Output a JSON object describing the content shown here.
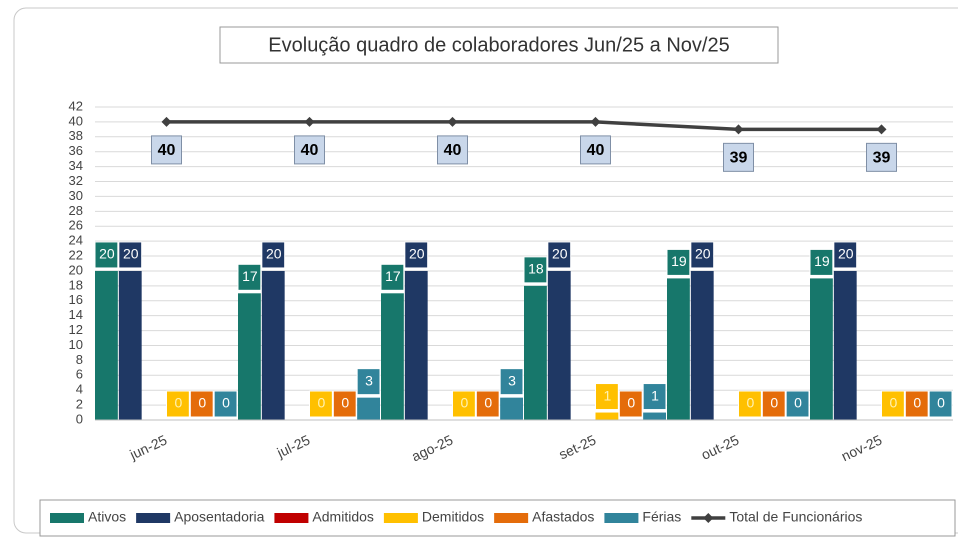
{
  "chart_data": {
    "type": "bar",
    "title": "Evolução quadro de colaboradores Jun/25 a Nov/25",
    "categories": [
      "jun-25",
      "jul-25",
      "ago-25",
      "set-25",
      "out-25",
      "nov-25"
    ],
    "ylim": [
      0,
      42
    ],
    "yticks": [
      0,
      2,
      4,
      6,
      8,
      10,
      12,
      14,
      16,
      18,
      20,
      22,
      24,
      26,
      28,
      30,
      32,
      34,
      36,
      38,
      40,
      42
    ],
    "grid": true,
    "legend": "bottom",
    "series": [
      {
        "name": "Ativos",
        "color": "#17776b",
        "values": [
          20,
          17,
          17,
          18,
          19,
          19
        ]
      },
      {
        "name": "Aposentadoria",
        "color": "#1f3864",
        "values": [
          20,
          20,
          20,
          20,
          20,
          20
        ]
      },
      {
        "name": "Admitidos",
        "color": "#c00000",
        "values": [
          0,
          0,
          0,
          0,
          0,
          0
        ],
        "labels": false
      },
      {
        "name": "Demitidos",
        "color": "#ffc000",
        "values": [
          0,
          0,
          0,
          1,
          0,
          0
        ]
      },
      {
        "name": "Afastados",
        "color": "#e46c0a",
        "values": [
          0,
          0,
          0,
          0,
          0,
          0
        ]
      },
      {
        "name": "Férias",
        "color": "#31849b",
        "values": [
          0,
          3,
          3,
          1,
          0,
          0
        ]
      },
      {
        "name": "Total de Funcionários",
        "type": "line",
        "color": "#404040",
        "values": [
          40,
          40,
          40,
          40,
          39,
          39
        ]
      }
    ]
  }
}
